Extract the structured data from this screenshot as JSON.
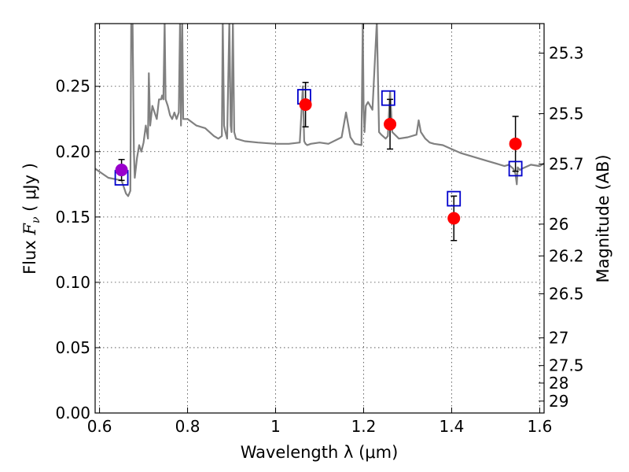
{
  "chart_data": {
    "type": "scatter",
    "title": "",
    "xlabel": "Wavelength  λ (μm)",
    "ylabel": "Flux  F_ν  ( μJy )",
    "ylabel_parts": {
      "prefix": "Flux  ",
      "symbol": "F",
      "subscript": "ν",
      "unit": "  ( μJy )"
    },
    "y2label": "Magnitude (AB)",
    "xlim": [
      0.59,
      1.61
    ],
    "ylim": [
      0.0,
      0.298
    ],
    "grid": true,
    "x_ticks": [
      {
        "value": 0.6,
        "label": "0.6"
      },
      {
        "value": 0.8,
        "label": "0.8"
      },
      {
        "value": 1.0,
        "label": "1"
      },
      {
        "value": 1.2,
        "label": "1.2"
      },
      {
        "value": 1.4,
        "label": "1.4"
      },
      {
        "value": 1.6,
        "label": "1.6"
      }
    ],
    "y_ticks": [
      {
        "value": 0.0,
        "label": "0.00"
      },
      {
        "value": 0.05,
        "label": "0.05"
      },
      {
        "value": 0.1,
        "label": "0.10"
      },
      {
        "value": 0.15,
        "label": "0.15"
      },
      {
        "value": 0.2,
        "label": "0.20"
      },
      {
        "value": 0.25,
        "label": "0.25"
      }
    ],
    "y2_ticks": [
      {
        "value": 25.3,
        "label": "25.3"
      },
      {
        "value": 25.5,
        "label": "25.5"
      },
      {
        "value": 25.7,
        "label": "25.7"
      },
      {
        "value": 26,
        "label": "26"
      },
      {
        "value": 26.2,
        "label": "26.2"
      },
      {
        "value": 26.5,
        "label": "26.5"
      },
      {
        "value": 27,
        "label": "27"
      },
      {
        "value": 27.5,
        "label": "27.5"
      },
      {
        "value": 28,
        "label": "28"
      },
      {
        "value": 29,
        "label": "29"
      }
    ],
    "series": [
      {
        "kind": "spectrum",
        "color": "#808080",
        "x": [
          0.59,
          0.62,
          0.65,
          0.66,
          0.665,
          0.67,
          0.672,
          0.675,
          0.678,
          0.68,
          0.685,
          0.69,
          0.695,
          0.7,
          0.705,
          0.71,
          0.712,
          0.715,
          0.72,
          0.725,
          0.73,
          0.735,
          0.74,
          0.742,
          0.745,
          0.748,
          0.75,
          0.755,
          0.76,
          0.765,
          0.77,
          0.775,
          0.78,
          0.783,
          0.785,
          0.788,
          0.79,
          0.8,
          0.82,
          0.84,
          0.86,
          0.87,
          0.878,
          0.88,
          0.883,
          0.886,
          0.89,
          0.895,
          0.898,
          0.9,
          0.903,
          0.906,
          0.91,
          0.93,
          0.96,
          1.0,
          1.03,
          1.055,
          1.062,
          1.065,
          1.068,
          1.072,
          1.08,
          1.1,
          1.12,
          1.15,
          1.16,
          1.17,
          1.18,
          1.195,
          1.198,
          1.2,
          1.202,
          1.205,
          1.21,
          1.22,
          1.23,
          1.235,
          1.24,
          1.25,
          1.255,
          1.26,
          1.265,
          1.28,
          1.3,
          1.32,
          1.325,
          1.33,
          1.34,
          1.35,
          1.36,
          1.38,
          1.4,
          1.42,
          1.45,
          1.48,
          1.5,
          1.52,
          1.53,
          1.54,
          1.545,
          1.548,
          1.55,
          1.555,
          1.56,
          1.58,
          1.6,
          1.61
        ],
        "y": [
          0.187,
          0.18,
          0.178,
          0.168,
          0.166,
          0.17,
          0.3,
          0.3,
          0.2,
          0.18,
          0.195,
          0.205,
          0.2,
          0.207,
          0.22,
          0.21,
          0.26,
          0.22,
          0.235,
          0.23,
          0.225,
          0.24,
          0.24,
          0.243,
          0.24,
          0.3,
          0.24,
          0.235,
          0.228,
          0.225,
          0.23,
          0.225,
          0.23,
          0.3,
          0.22,
          0.3,
          0.225,
          0.225,
          0.22,
          0.218,
          0.212,
          0.21,
          0.212,
          0.3,
          0.22,
          0.215,
          0.21,
          0.3,
          0.22,
          0.215,
          0.3,
          0.215,
          0.21,
          0.208,
          0.207,
          0.206,
          0.206,
          0.207,
          0.25,
          0.208,
          0.206,
          0.205,
          0.206,
          0.207,
          0.206,
          0.211,
          0.23,
          0.211,
          0.206,
          0.205,
          0.3,
          0.233,
          0.215,
          0.235,
          0.238,
          0.232,
          0.3,
          0.215,
          0.213,
          0.21,
          0.212,
          0.246,
          0.215,
          0.21,
          0.211,
          0.213,
          0.224,
          0.215,
          0.21,
          0.207,
          0.206,
          0.205,
          0.202,
          0.199,
          0.196,
          0.193,
          0.191,
          0.189,
          0.19,
          0.187,
          0.183,
          0.175,
          0.188,
          0.186,
          0.187,
          0.19,
          0.189,
          0.191
        ]
      },
      {
        "kind": "model",
        "marker": "open-square",
        "color": "#0000cc",
        "x": [
          0.65,
          1.065,
          1.256,
          1.405,
          1.545
        ],
        "y": [
          0.18,
          0.242,
          0.241,
          0.164,
          0.187
        ]
      },
      {
        "kind": "observed",
        "marker": "filled-circle",
        "x": [
          0.65,
          1.068,
          1.26,
          1.405,
          1.545
        ],
        "y": [
          0.186,
          0.236,
          0.221,
          0.149,
          0.206
        ],
        "yerr": [
          0.008,
          0.017,
          0.019,
          0.017,
          0.021
        ],
        "colors": [
          "#9900cc",
          "#ff0000",
          "#ff0000",
          "#ff0000",
          "#ff0000"
        ]
      }
    ]
  }
}
